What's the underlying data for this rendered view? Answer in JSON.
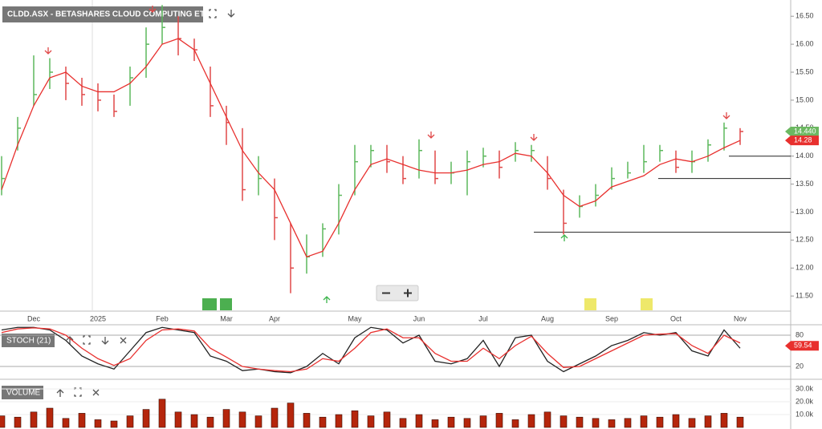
{
  "chart_data": {
    "type": "ohlc",
    "title": "CLDD.ASX - BETASHARES CLOUD COMPUTING ETF",
    "categories": [
      null,
      null,
      "Dec",
      null,
      null,
      null,
      "2025",
      null,
      null,
      null,
      "Feb",
      null,
      null,
      null,
      "Mar",
      null,
      null,
      "Apr",
      null,
      null,
      null,
      null,
      "May",
      null,
      null,
      null,
      "Jun",
      null,
      null,
      null,
      "Jul",
      null,
      null,
      null,
      "Aug",
      null,
      null,
      null,
      "Sep",
      null,
      null,
      null,
      "Oct",
      null,
      null,
      null,
      "Nov"
    ],
    "high": [
      14.0,
      14.7,
      15.8,
      15.75,
      15.6,
      15.4,
      15.3,
      15.1,
      15.6,
      16.3,
      16.7,
      16.5,
      16.1,
      15.6,
      14.9,
      14.5,
      14.0,
      13.6,
      12.8,
      12.6,
      12.8,
      13.5,
      14.2,
      14.2,
      14.2,
      14.0,
      14.3,
      14.1,
      13.9,
      14.1,
      14.15,
      14.1,
      14.25,
      14.2,
      14.0,
      13.4,
      13.3,
      13.5,
      13.8,
      13.9,
      14.2,
      14.2,
      14.1,
      14.1,
      14.3,
      14.6,
      14.5
    ],
    "low": [
      13.3,
      14.1,
      14.9,
      15.2,
      15.0,
      14.9,
      14.8,
      14.7,
      14.9,
      15.4,
      16.0,
      15.8,
      15.7,
      14.7,
      14.2,
      13.2,
      13.3,
      12.5,
      11.55,
      11.9,
      12.2,
      12.6,
      13.3,
      13.8,
      13.7,
      13.5,
      13.6,
      13.5,
      13.5,
      13.3,
      13.8,
      13.6,
      13.9,
      13.9,
      13.4,
      12.6,
      12.9,
      13.1,
      13.4,
      13.6,
      13.7,
      13.9,
      13.7,
      13.7,
      13.9,
      14.1,
      14.2
    ],
    "close": [
      13.6,
      14.5,
      15.1,
      15.5,
      15.3,
      15.1,
      15.0,
      14.8,
      15.4,
      16.0,
      16.3,
      16.1,
      15.9,
      14.9,
      14.6,
      13.4,
      13.6,
      12.9,
      12.0,
      12.2,
      12.7,
      13.3,
      13.9,
      14.1,
      13.9,
      13.6,
      14.1,
      13.6,
      13.7,
      13.9,
      14.0,
      13.8,
      14.1,
      14.1,
      13.6,
      12.8,
      13.1,
      13.3,
      13.6,
      13.7,
      13.9,
      14.1,
      13.8,
      13.9,
      14.2,
      14.5,
      14.44
    ],
    "ma": [
      13.4,
      14.2,
      14.9,
      15.4,
      15.5,
      15.25,
      15.15,
      15.15,
      15.3,
      15.6,
      16.0,
      16.1,
      15.9,
      15.3,
      14.7,
      14.1,
      13.7,
      13.4,
      12.8,
      12.2,
      12.3,
      12.8,
      13.4,
      13.85,
      13.95,
      13.85,
      13.75,
      13.7,
      13.7,
      13.75,
      13.85,
      13.9,
      14.05,
      14.0,
      13.7,
      13.3,
      13.1,
      13.2,
      13.45,
      13.55,
      13.65,
      13.85,
      13.95,
      13.9,
      14.0,
      14.15,
      14.28
    ],
    "up_color": "#5cb85c",
    "down_color": "#e04848",
    "ma_color": "#e8302e",
    "ylim": [
      11.23,
      16.79
    ],
    "yticks": [
      {
        "value": 11.5,
        "label": "11.50"
      },
      {
        "value": 12,
        "label": "12.00"
      },
      {
        "value": 12.5,
        "label": "12.50"
      },
      {
        "value": 13,
        "label": "13.00"
      },
      {
        "value": 13.5,
        "label": "13.50"
      },
      {
        "value": 14,
        "label": "14.00"
      },
      {
        "value": 14.5,
        "label": "14.50"
      },
      {
        "value": 15,
        "label": "15.00"
      },
      {
        "value": 15.5,
        "label": "15.50"
      },
      {
        "value": 16,
        "label": "16.00"
      },
      {
        "value": 16.5,
        "label": "16.50"
      }
    ],
    "levels": [
      14.0,
      13.6,
      12.64
    ],
    "last_price": {
      "value": 14.44,
      "label": "14.440"
    },
    "ma_last": {
      "value": 14.28,
      "label": "14.28"
    },
    "panels": [
      {
        "type": "line",
        "title": "STOCH (21)",
        "ylim": [
          0,
          100
        ],
        "yticks": [
          20,
          80
        ],
        "last": {
          "value": 59.54,
          "label": "59.54"
        },
        "series": [
          {
            "color": "#222222",
            "values": [
              90,
              95,
              95,
              90,
              70,
              40,
              25,
              15,
              50,
              85,
              95,
              90,
              85,
              40,
              30,
              12,
              15,
              10,
              8,
              20,
              45,
              25,
              75,
              95,
              90,
              65,
              80,
              30,
              25,
              35,
              70,
              20,
              75,
              80,
              30,
              10,
              25,
              40,
              60,
              70,
              85,
              80,
              85,
              50,
              40,
              90,
              55
            ]
          },
          {
            "color": "#e8302e",
            "values": [
              85,
              92,
              94,
              92,
              80,
              55,
              35,
              22,
              35,
              70,
              90,
              92,
              88,
              55,
              38,
              20,
              15,
              12,
              10,
              15,
              35,
              30,
              55,
              85,
              92,
              75,
              75,
              45,
              30,
              30,
              55,
              35,
              60,
              78,
              45,
              18,
              20,
              35,
              50,
              65,
              80,
              82,
              83,
              60,
              45,
              80,
              65
            ]
          }
        ]
      },
      {
        "type": "bar",
        "title": "VOLUME",
        "color": "#b5260c",
        "ylim": [
          0,
          34400
        ],
        "yticks": [
          {
            "value": 10000,
            "label": "10.0k"
          },
          {
            "value": 20000,
            "label": "20.0k"
          },
          {
            "value": 30000,
            "label": "30.0k"
          }
        ],
        "values": [
          9000,
          8000,
          12000,
          15000,
          7000,
          11000,
          6000,
          5000,
          9000,
          14000,
          22000,
          12000,
          10000,
          8000,
          14000,
          12000,
          9000,
          15000,
          19000,
          11000,
          8000,
          10000,
          13000,
          9000,
          12000,
          7000,
          10000,
          6000,
          8000,
          7000,
          9000,
          11000,
          6000,
          10000,
          12000,
          9000,
          8000,
          7000,
          6000,
          7000,
          9000,
          8000,
          10000,
          7000,
          9000,
          11000,
          8000
        ]
      }
    ]
  }
}
